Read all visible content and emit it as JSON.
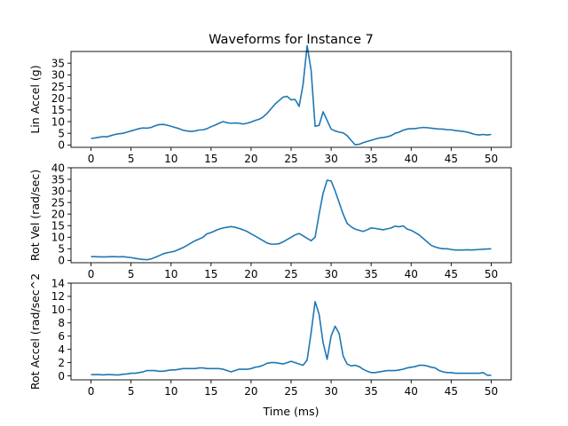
{
  "figure": {
    "title": "Waveforms for Instance 7",
    "xlabel": "Time (ms)",
    "line_color": "#1f77b4"
  },
  "chart_data": [
    {
      "type": "line",
      "ylabel": "Lin Accel (g)",
      "xlim": [
        -2.5,
        52.5
      ],
      "ylim": [
        -1,
        40
      ],
      "xticks": [
        0,
        5,
        10,
        15,
        20,
        25,
        30,
        35,
        40,
        45,
        50
      ],
      "yticks": [
        0,
        5,
        10,
        15,
        20,
        25,
        30,
        35
      ],
      "grid": false,
      "series": [
        {
          "x": [
            0,
            0.5,
            1,
            1.5,
            2,
            2.5,
            3,
            3.5,
            4,
            4.5,
            5,
            5.5,
            6,
            6.5,
            7,
            7.5,
            8,
            8.5,
            9,
            9.5,
            10,
            10.5,
            11,
            11.5,
            12,
            12.5,
            13,
            13.5,
            14,
            14.5,
            15,
            15.5,
            16,
            16.5,
            17,
            17.5,
            18,
            18.5,
            19,
            19.5,
            20,
            20.5,
            21,
            21.5,
            22,
            22.5,
            23,
            23.5,
            24,
            24.5,
            25,
            25.5,
            26,
            26.5,
            27,
            27.5,
            28,
            28.5,
            29,
            29.5,
            30,
            30.5,
            31,
            31.5,
            32,
            32.5,
            33,
            33.5,
            34,
            34.5,
            35,
            35.5,
            36,
            36.5,
            37,
            37.5,
            38,
            38.5,
            39,
            39.5,
            40,
            40.5,
            41,
            41.5,
            42,
            42.5,
            43,
            43.5,
            44,
            44.5,
            45,
            45.5,
            46,
            46.5,
            47,
            47.5,
            48,
            48.5,
            49,
            49.5,
            50
          ],
          "values": [
            2.8,
            3,
            3.3,
            3.6,
            3.5,
            4,
            4.5,
            4.8,
            5,
            5.5,
            6,
            6.5,
            7,
            7.3,
            7.2,
            7.5,
            8.2,
            8.7,
            8.8,
            8.5,
            8,
            7.5,
            7,
            6.3,
            6,
            5.8,
            6,
            6.4,
            6.5,
            7,
            7.8,
            8.5,
            9.3,
            10,
            9.5,
            9.3,
            9.4,
            9.3,
            9,
            9.3,
            9.8,
            10.5,
            11,
            12,
            13.5,
            15.5,
            17.5,
            19,
            20.5,
            20.8,
            19.3,
            19.5,
            16.5,
            26,
            42.5,
            32,
            8,
            8.4,
            14.2,
            10.5,
            6.8,
            6,
            5.5,
            5.2,
            4,
            2,
            0.1,
            0.3,
            1,
            1.5,
            2,
            2.5,
            3,
            3.2,
            3.5,
            4,
            5,
            5.5,
            6.3,
            6.8,
            7,
            7,
            7.3,
            7.5,
            7.4,
            7.2,
            7,
            6.8,
            6.8,
            6.5,
            6.5,
            6.2,
            6,
            5.8,
            5.5,
            5,
            4.5,
            4.3,
            4.5,
            4.3,
            4.5
          ]
        }
      ]
    },
    {
      "type": "line",
      "ylabel": "Rot Vel (rad/sec)",
      "xlim": [
        -2.5,
        52.5
      ],
      "ylim": [
        -1,
        40
      ],
      "xticks": [
        0,
        5,
        10,
        15,
        20,
        25,
        30,
        35,
        40,
        45,
        50
      ],
      "yticks": [
        0,
        5,
        10,
        15,
        20,
        25,
        30,
        35,
        40
      ],
      "grid": false,
      "series": [
        {
          "x": [
            0,
            0.5,
            1,
            1.5,
            2,
            2.5,
            3,
            3.5,
            4,
            4.5,
            5,
            5.5,
            6,
            6.5,
            7,
            7.5,
            8,
            8.5,
            9,
            9.5,
            10,
            10.5,
            11,
            11.5,
            12,
            12.5,
            13,
            13.5,
            14,
            14.5,
            15,
            15.5,
            16,
            16.5,
            17,
            17.5,
            18,
            18.5,
            19,
            19.5,
            20,
            20.5,
            21,
            21.5,
            22,
            22.5,
            23,
            23.5,
            24,
            24.5,
            25,
            25.5,
            26,
            26.5,
            27,
            27.5,
            28,
            28.5,
            29,
            29.5,
            30,
            30.5,
            31,
            31.5,
            32,
            32.5,
            33,
            33.5,
            34,
            34.5,
            35,
            35.5,
            36,
            36.5,
            37,
            37.5,
            38,
            38.5,
            39,
            39.5,
            40,
            40.5,
            41,
            41.5,
            42,
            42.5,
            43,
            43.5,
            44,
            44.5,
            45,
            45.5,
            46,
            46.5,
            47,
            47.5,
            48,
            48.5,
            49,
            49.5,
            50
          ],
          "values": [
            1.6,
            1.6,
            1.5,
            1.5,
            1.5,
            1.6,
            1.6,
            1.5,
            1.6,
            1.4,
            1.2,
            0.9,
            0.6,
            0.4,
            0.3,
            0.6,
            1.3,
            2,
            2.8,
            3.3,
            3.6,
            4,
            4.8,
            5.5,
            6.5,
            7.5,
            8.5,
            9.2,
            10,
            11.5,
            12,
            12.8,
            13.5,
            14,
            14.3,
            14.6,
            14.3,
            13.8,
            13.2,
            12.5,
            11.5,
            10.5,
            9.5,
            8.5,
            7.5,
            7,
            7,
            7.2,
            8,
            9,
            10,
            11,
            11.6,
            10.6,
            9.5,
            8.5,
            10,
            20,
            29,
            34.6,
            34.3,
            30,
            25,
            20,
            16,
            14.5,
            13.5,
            13,
            12.5,
            13.2,
            14,
            13.8,
            13.5,
            13.2,
            13.6,
            14,
            14.8,
            14.5,
            14.9,
            13.5,
            13,
            12,
            11,
            9.5,
            8,
            6.5,
            5.8,
            5.3,
            5,
            5,
            4.7,
            4.5,
            4.5,
            4.5,
            4.6,
            4.5,
            4.6,
            4.7,
            4.8,
            4.9,
            5
          ]
        }
      ]
    },
    {
      "type": "line",
      "ylabel": "Rot Accel (rad/sec^2",
      "xlim": [
        -2.5,
        52.5
      ],
      "ylim": [
        -0.6,
        14
      ],
      "xticks": [
        0,
        5,
        10,
        15,
        20,
        25,
        30,
        35,
        40,
        45,
        50
      ],
      "yticks": [
        0,
        2,
        4,
        6,
        8,
        10,
        12,
        14
      ],
      "grid": false,
      "series": [
        {
          "x": [
            0,
            0.5,
            1,
            1.5,
            2,
            2.5,
            3,
            3.5,
            4,
            4.5,
            5,
            5.5,
            6,
            6.5,
            7,
            7.5,
            8,
            8.5,
            9,
            9.5,
            10,
            10.5,
            11,
            11.5,
            12,
            12.5,
            13,
            13.5,
            14,
            14.5,
            15,
            15.5,
            16,
            16.5,
            17,
            17.5,
            18,
            18.5,
            19,
            19.5,
            20,
            20.5,
            21,
            21.5,
            22,
            22.5,
            23,
            23.5,
            24,
            24.5,
            25,
            25.5,
            26,
            26.5,
            27,
            27.5,
            28,
            28.5,
            29,
            29.5,
            30,
            30.5,
            31,
            31.5,
            32,
            32.5,
            33,
            33.5,
            34,
            34.5,
            35,
            35.5,
            36,
            36.5,
            37,
            37.5,
            38,
            38.5,
            39,
            39.5,
            40,
            40.5,
            41,
            41.5,
            42,
            42.5,
            43,
            43.5,
            44,
            44.5,
            45,
            45.5,
            46,
            46.5,
            47,
            47.5,
            48,
            48.5,
            49,
            49.5,
            50
          ],
          "values": [
            0.2,
            0.2,
            0.2,
            0.15,
            0.2,
            0.2,
            0.15,
            0.15,
            0.25,
            0.3,
            0.4,
            0.4,
            0.5,
            0.6,
            0.8,
            0.8,
            0.8,
            0.7,
            0.7,
            0.8,
            0.9,
            0.9,
            1,
            1.1,
            1.1,
            1.1,
            1.1,
            1.2,
            1.2,
            1.1,
            1.1,
            1.1,
            1.1,
            1,
            0.8,
            0.6,
            0.8,
            1,
            1,
            1,
            1.1,
            1.3,
            1.4,
            1.6,
            1.9,
            2,
            2,
            1.9,
            1.8,
            2,
            2.2,
            2,
            1.8,
            1.6,
            2.4,
            6.5,
            11.2,
            9.3,
            5,
            2.5,
            6,
            7.5,
            6.4,
            3,
            1.8,
            1.5,
            1.6,
            1.4,
            1,
            0.7,
            0.5,
            0.5,
            0.6,
            0.7,
            0.8,
            0.8,
            0.8,
            0.9,
            1,
            1.2,
            1.3,
            1.4,
            1.6,
            1.6,
            1.5,
            1.3,
            1.2,
            0.8,
            0.6,
            0.5,
            0.5,
            0.4,
            0.4,
            0.4,
            0.4,
            0.4,
            0.4,
            0.4,
            0.5,
            0.1,
            0.1
          ]
        }
      ]
    }
  ]
}
